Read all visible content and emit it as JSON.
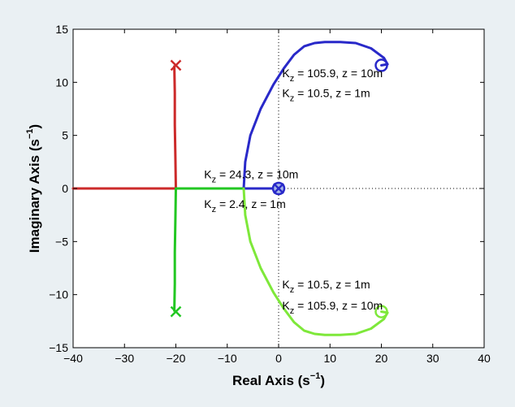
{
  "chart_data": {
    "type": "line",
    "title": "",
    "xlabel": "Real Axis (s",
    "xlabel_sup": "−1",
    "xlabel_end": ")",
    "ylabel": "Imaginary Axis (s",
    "ylabel_sup": "−1",
    "ylabel_end": ")",
    "xlim": [
      -40,
      40
    ],
    "ylim": [
      -15,
      15
    ],
    "xticks": [
      -40,
      -30,
      -20,
      -10,
      0,
      10,
      20,
      30,
      40
    ],
    "xtick_labels": [
      "−40",
      "−30",
      "−20",
      "−10",
      "0",
      "10",
      "20",
      "30",
      "40"
    ],
    "yticks": [
      -15,
      -10,
      -5,
      0,
      5,
      10,
      15
    ],
    "ytick_labels": [
      "−15",
      "−10",
      "−5",
      "0",
      "5",
      "10",
      "15"
    ],
    "grid": false,
    "background_color": "#eaf0f3",
    "plot_background": "#ffffff",
    "series": [
      {
        "color": "#cc2a2a",
        "points": [
          [
            -40,
            0
          ],
          [
            -20,
            0
          ]
        ]
      },
      {
        "color": "#cc2a2a",
        "points": [
          [
            -20,
            0
          ],
          [
            -20.1,
            3
          ],
          [
            -20.2,
            6
          ],
          [
            -20.2,
            9
          ],
          [
            -20.3,
            11.5
          ]
        ]
      },
      {
        "color": "#22c722",
        "points": [
          [
            -20,
            0
          ],
          [
            -20.1,
            -3
          ],
          [
            -20.2,
            -6
          ],
          [
            -20.2,
            -9
          ],
          [
            -20.3,
            -11.5
          ]
        ]
      },
      {
        "color": "#22c722",
        "points": [
          [
            -20,
            0
          ],
          [
            -6.8,
            0
          ]
        ]
      },
      {
        "color": "#2929c9",
        "points": [
          [
            -6.8,
            0
          ],
          [
            -0.3,
            0
          ]
        ]
      },
      {
        "color": "#2929c9",
        "points": [
          [
            -6.8,
            0
          ],
          [
            -6.5,
            2.5
          ],
          [
            -5.5,
            5
          ],
          [
            -3.5,
            7.5
          ],
          [
            -1,
            9.8
          ],
          [
            1,
            11.3
          ],
          [
            3,
            12.6
          ],
          [
            5,
            13.4
          ],
          [
            7,
            13.7
          ],
          [
            9,
            13.8
          ],
          [
            12,
            13.8
          ],
          [
            15,
            13.7
          ],
          [
            18,
            13.2
          ],
          [
            20.5,
            12.3
          ],
          [
            21.2,
            11.7
          ],
          [
            20,
            11.6
          ]
        ]
      },
      {
        "color": "#7ee83a",
        "points": [
          [
            -6.8,
            0
          ],
          [
            -6.5,
            -2.5
          ],
          [
            -5.5,
            -5
          ],
          [
            -3.5,
            -7.5
          ],
          [
            -1,
            -9.8
          ],
          [
            1,
            -11.3
          ],
          [
            3,
            -12.6
          ],
          [
            5,
            -13.4
          ],
          [
            7,
            -13.7
          ],
          [
            9,
            -13.8
          ],
          [
            12,
            -13.8
          ],
          [
            15,
            -13.7
          ],
          [
            18,
            -13.2
          ],
          [
            20.5,
            -12.3
          ],
          [
            21.2,
            -11.7
          ],
          [
            20,
            -11.6
          ]
        ]
      }
    ],
    "reference_lines": [
      {
        "orientation": "vertical",
        "value": 0,
        "style": "dotted"
      },
      {
        "orientation": "horizontal",
        "value": 0,
        "style": "dotted"
      }
    ],
    "markers": [
      {
        "kind": "x",
        "x": -20,
        "y": 11.6,
        "color": "#cc2a2a"
      },
      {
        "kind": "x",
        "x": -20,
        "y": -11.6,
        "color": "#22c722"
      },
      {
        "kind": "o",
        "x": 20,
        "y": 11.6,
        "color": "#2929c9"
      },
      {
        "kind": "o",
        "x": 20,
        "y": -11.6,
        "color": "#7ee83a"
      },
      {
        "kind": "ox",
        "x": 0,
        "y": 0,
        "color": "#2929c9",
        "fill": "#a8b8e8"
      }
    ],
    "annotations": [
      {
        "x": 0.7,
        "y": 10.5,
        "base": "K",
        "sub": "z",
        "rest": " = 105.9, z = 10m"
      },
      {
        "x": 0.7,
        "y": 8.6,
        "base": "K",
        "sub": "z",
        "rest": " = 10.5, z = 1m"
      },
      {
        "x": -14.5,
        "y": 0.95,
        "base": "K",
        "sub": "z",
        "rest": " = 24.3, z = 10m"
      },
      {
        "x": -14.5,
        "y": -1.85,
        "base": "K",
        "sub": "z",
        "rest": " = 2.4, z = 1m"
      },
      {
        "x": 0.7,
        "y": -9.4,
        "base": "K",
        "sub": "z",
        "rest": " = 10.5, z = 1m"
      },
      {
        "x": 0.7,
        "y": -11.4,
        "base": "K",
        "sub": "z",
        "rest": " = 105.9, z = 10m"
      }
    ]
  }
}
